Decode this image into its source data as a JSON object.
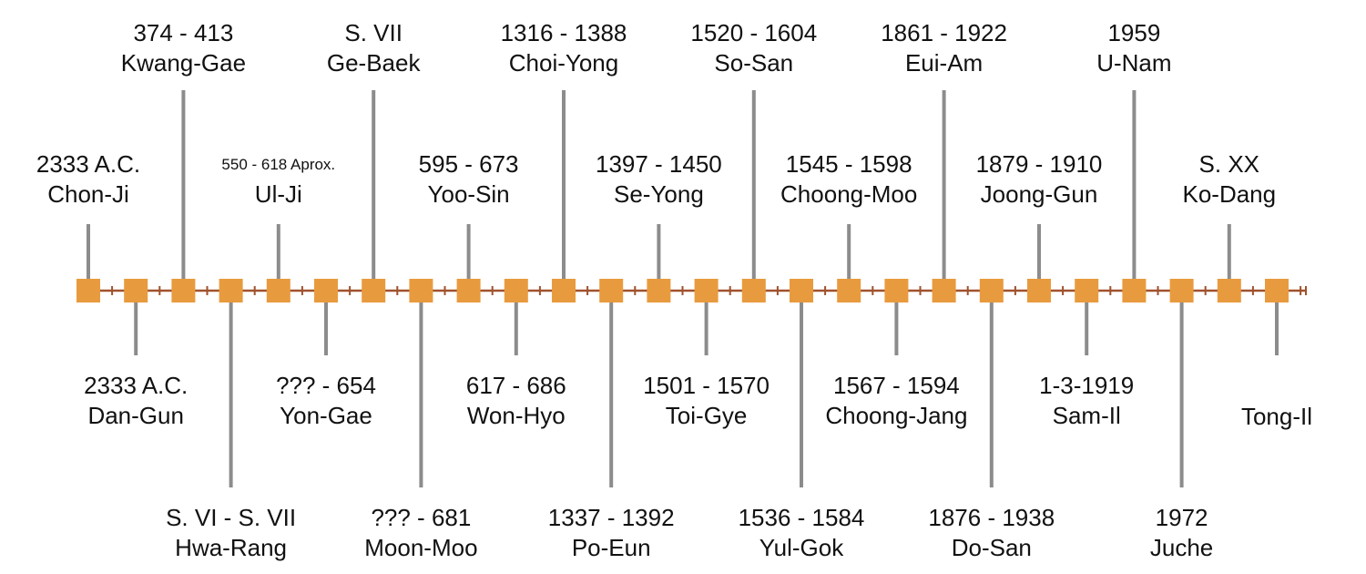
{
  "colors": {
    "axis": "#a0522d",
    "marker": "#e89b3e",
    "connector": "#8c8c8c",
    "text": "#111111"
  },
  "events": [
    {
      "date": "2333 A.C.",
      "name": "Chon-Ji"
    },
    {
      "date": "2333 A.C.",
      "name": "Dan-Gun"
    },
    {
      "date": "374 - 413",
      "name": "Kwang-Gae"
    },
    {
      "date": "S. VI - S. VII",
      "name": "Hwa-Rang"
    },
    {
      "date": "550 - 618 Aprox.",
      "name": "Ul-Ji"
    },
    {
      "date": "??? - 654",
      "name": "Yon-Gae"
    },
    {
      "date": "S. VII",
      "name": "Ge-Baek"
    },
    {
      "date": "??? - 681",
      "name": "Moon-Moo"
    },
    {
      "date": "595 - 673",
      "name": "Yoo-Sin"
    },
    {
      "date": "617 - 686",
      "name": "Won-Hyo"
    },
    {
      "date": "1316 - 1388",
      "name": "Choi-Yong"
    },
    {
      "date": "1337 - 1392",
      "name": "Po-Eun"
    },
    {
      "date": "1397 - 1450",
      "name": "Se-Yong"
    },
    {
      "date": "1501 - 1570",
      "name": "Toi-Gye"
    },
    {
      "date": "1520 - 1604",
      "name": "So-San"
    },
    {
      "date": "1536 - 1584",
      "name": "Yul-Gok"
    },
    {
      "date": "1545 - 1598",
      "name": "Choong-Moo"
    },
    {
      "date": "1567 - 1594",
      "name": "Choong-Jang"
    },
    {
      "date": "1861 - 1922",
      "name": "Eui-Am"
    },
    {
      "date": "1876 - 1938",
      "name": "Do-San"
    },
    {
      "date": "1879 - 1910",
      "name": "Joong-Gun"
    },
    {
      "date": "1-3-1919",
      "name": "Sam-Il"
    },
    {
      "date": "1959",
      "name": "U-Nam"
    },
    {
      "date": "1972",
      "name": "Juche"
    },
    {
      "date": "S. XX",
      "name": "Ko-Dang"
    },
    {
      "date": "",
      "name": "Tong-Il"
    }
  ]
}
